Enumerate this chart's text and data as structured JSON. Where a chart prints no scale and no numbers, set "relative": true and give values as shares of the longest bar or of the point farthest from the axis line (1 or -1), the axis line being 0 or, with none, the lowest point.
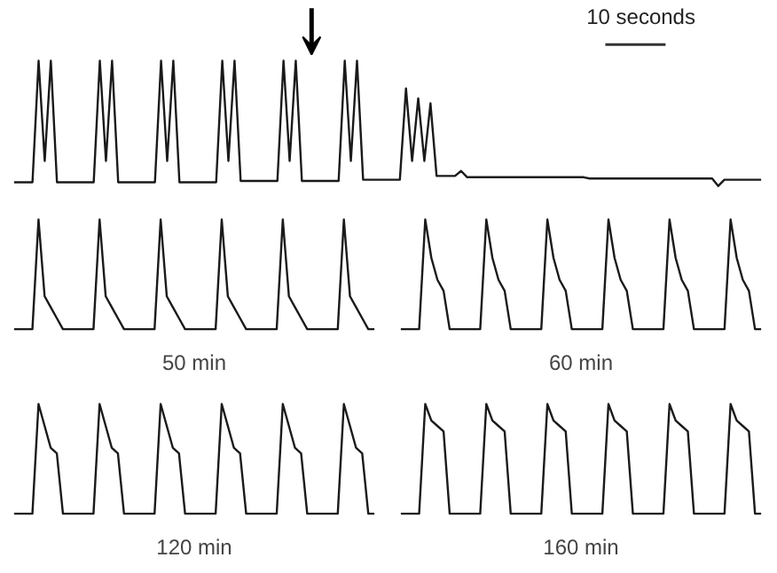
{
  "chart_data": [
    {
      "type": "line",
      "relative": true,
      "color": "#1a1a1a",
      "annotations": [
        "10 seconds"
      ],
      "categories": [
        null,
        null,
        null,
        null,
        null,
        null,
        null,
        null,
        null,
        null,
        null,
        null,
        null,
        null,
        null,
        null,
        null,
        null,
        null,
        null,
        null,
        null,
        null,
        null,
        null,
        null,
        null,
        null,
        null,
        null,
        null,
        null,
        null,
        null,
        null,
        null,
        null,
        null,
        null,
        null,
        null,
        null,
        null,
        null,
        null,
        null,
        null,
        null,
        null,
        null,
        null,
        null,
        null,
        null,
        null,
        null,
        null,
        null,
        null,
        null,
        null,
        null,
        null,
        null,
        null,
        null,
        null,
        null,
        null,
        null,
        null,
        null,
        null,
        null,
        null,
        null,
        null,
        null,
        null,
        null,
        null,
        null,
        null,
        null,
        null,
        null,
        null,
        null,
        null,
        null,
        null,
        null,
        null,
        null,
        null,
        null,
        null,
        null,
        null,
        null,
        null,
        null,
        null,
        null,
        null,
        null,
        null,
        null,
        null,
        null,
        null,
        null,
        null,
        null,
        null,
        null,
        null,
        null,
        null,
        null,
        null,
        null,
        null
      ],
      "values": [
        0.03,
        0.03,
        0.03,
        0.03,
        1,
        0.2,
        1,
        0.03,
        0.03,
        0.03,
        0.03,
        0.03,
        0.03,
        0.03,
        1,
        0.2,
        1,
        0.03,
        0.03,
        0.03,
        0.03,
        0.03,
        0.03,
        0.03,
        1,
        0.2,
        1,
        0.03,
        0.03,
        0.03,
        0.03,
        0.03,
        0.03,
        0.03,
        1,
        0.2,
        1,
        0.04,
        0.04,
        0.04,
        0.04,
        0.04,
        0.04,
        0.04,
        1,
        0.2,
        1,
        0.04,
        0.04,
        0.04,
        0.04,
        0.04,
        0.04,
        0.04,
        1,
        0.2,
        1,
        0.05,
        0.05,
        0.05,
        0.05,
        0.05,
        0.05,
        0.05,
        0.78,
        0.2,
        0.7,
        0.2,
        0.66,
        0.08,
        0.08,
        0.08,
        0.08,
        0.12,
        0.07,
        0.07,
        0.07,
        0.07,
        0.07,
        0.07,
        0.07,
        0.07,
        0.07,
        0.07,
        0.07,
        0.07,
        0.07,
        0.07,
        0.07,
        0.07,
        0.07,
        0.07,
        0.07,
        0.07,
        0.06,
        0.06,
        0.06,
        0.06,
        0.06,
        0.06,
        0.06,
        0.06,
        0.06,
        0.06,
        0.06,
        0.06,
        0.06,
        0.06,
        0.06,
        0.06,
        0.06,
        0.06,
        0.06,
        0.06,
        0.06,
        0,
        0.05,
        0.05,
        0.05,
        0.05,
        0.05,
        0.05,
        0.05
      ]
    },
    {
      "type": "line",
      "relative": true,
      "color": "#1a1a1a",
      "title": "50 min",
      "categories": [
        null,
        null,
        null,
        null,
        null,
        null,
        null,
        null,
        null,
        null,
        null,
        null,
        null,
        null,
        null,
        null,
        null,
        null,
        null,
        null,
        null,
        null,
        null,
        null,
        null,
        null,
        null,
        null,
        null,
        null,
        null,
        null,
        null,
        null,
        null,
        null,
        null,
        null,
        null,
        null,
        null,
        null,
        null,
        null,
        null,
        null,
        null,
        null,
        null,
        null,
        null,
        null,
        null,
        null,
        null,
        null,
        null,
        null,
        null,
        null
      ],
      "values": [
        0,
        0,
        0,
        0,
        1,
        0.3,
        0.2,
        0.1,
        0,
        0,
        0,
        0,
        0,
        0,
        1,
        0.3,
        0.2,
        0.1,
        0,
        0,
        0,
        0,
        0,
        0,
        1,
        0.3,
        0.2,
        0.1,
        0,
        0,
        0,
        0,
        0,
        0,
        1,
        0.3,
        0.2,
        0.1,
        0,
        0,
        0,
        0,
        0,
        0,
        1,
        0.3,
        0.2,
        0.1,
        0,
        0,
        0,
        0,
        0,
        0,
        1,
        0.3,
        0.2,
        0.1,
        0,
        0
      ]
    },
    {
      "type": "line",
      "relative": true,
      "color": "#1a1a1a",
      "title": "60 min",
      "categories": [
        null,
        null,
        null,
        null,
        null,
        null,
        null,
        null,
        null,
        null,
        null,
        null,
        null,
        null,
        null,
        null,
        null,
        null,
        null,
        null,
        null,
        null,
        null,
        null,
        null,
        null,
        null,
        null,
        null,
        null,
        null,
        null,
        null,
        null,
        null,
        null,
        null,
        null,
        null,
        null,
        null,
        null,
        null,
        null,
        null,
        null,
        null,
        null,
        null,
        null,
        null,
        null,
        null,
        null,
        null,
        null,
        null,
        null,
        null,
        null
      ],
      "values": [
        0,
        0,
        0,
        0,
        1,
        0.65,
        0.45,
        0.35,
        0,
        0,
        0,
        0,
        0,
        0,
        1,
        0.65,
        0.45,
        0.35,
        0,
        0,
        0,
        0,
        0,
        0,
        1,
        0.65,
        0.45,
        0.35,
        0,
        0,
        0,
        0,
        0,
        0,
        1,
        0.65,
        0.45,
        0.35,
        0,
        0,
        0,
        0,
        0,
        0,
        1,
        0.65,
        0.45,
        0.35,
        0,
        0,
        0,
        0,
        0,
        0,
        1,
        0.65,
        0.45,
        0.35,
        0,
        0
      ]
    },
    {
      "type": "line",
      "relative": true,
      "color": "#1a1a1a",
      "title": "120 min",
      "categories": [
        null,
        null,
        null,
        null,
        null,
        null,
        null,
        null,
        null,
        null,
        null,
        null,
        null,
        null,
        null,
        null,
        null,
        null,
        null,
        null,
        null,
        null,
        null,
        null,
        null,
        null,
        null,
        null,
        null,
        null,
        null,
        null,
        null,
        null,
        null,
        null,
        null,
        null,
        null,
        null,
        null,
        null,
        null,
        null,
        null,
        null,
        null,
        null,
        null,
        null,
        null,
        null,
        null,
        null,
        null,
        null,
        null,
        null,
        null,
        null
      ],
      "values": [
        0,
        0,
        0,
        0,
        1,
        0.8,
        0.6,
        0.55,
        0,
        0,
        0,
        0,
        0,
        0,
        1,
        0.8,
        0.6,
        0.55,
        0,
        0,
        0,
        0,
        0,
        0,
        1,
        0.8,
        0.6,
        0.55,
        0,
        0,
        0,
        0,
        0,
        0,
        1,
        0.8,
        0.6,
        0.55,
        0,
        0,
        0,
        0,
        0,
        0,
        1,
        0.8,
        0.6,
        0.55,
        0,
        0,
        0,
        0,
        0,
        0,
        1,
        0.8,
        0.6,
        0.55,
        0,
        0
      ]
    },
    {
      "type": "line",
      "relative": true,
      "color": "#1a1a1a",
      "title": "160 min",
      "categories": [
        null,
        null,
        null,
        null,
        null,
        null,
        null,
        null,
        null,
        null,
        null,
        null,
        null,
        null,
        null,
        null,
        null,
        null,
        null,
        null,
        null,
        null,
        null,
        null,
        null,
        null,
        null,
        null,
        null,
        null,
        null,
        null,
        null,
        null,
        null,
        null,
        null,
        null,
        null,
        null,
        null,
        null,
        null,
        null,
        null,
        null,
        null,
        null,
        null,
        null,
        null,
        null,
        null,
        null,
        null,
        null,
        null,
        null,
        null,
        null
      ],
      "values": [
        0,
        0,
        0,
        0,
        1,
        0.85,
        0.8,
        0.75,
        0,
        0,
        0,
        0,
        0,
        0,
        1,
        0.85,
        0.8,
        0.75,
        0,
        0,
        0,
        0,
        0,
        0,
        1,
        0.85,
        0.8,
        0.75,
        0,
        0,
        0,
        0,
        0,
        0,
        1,
        0.85,
        0.8,
        0.75,
        0,
        0,
        0,
        0,
        0,
        0,
        1,
        0.85,
        0.8,
        0.75,
        0,
        0,
        0,
        0,
        0,
        0,
        1,
        0.85,
        0.8,
        0.75,
        0,
        0
      ]
    }
  ]
}
